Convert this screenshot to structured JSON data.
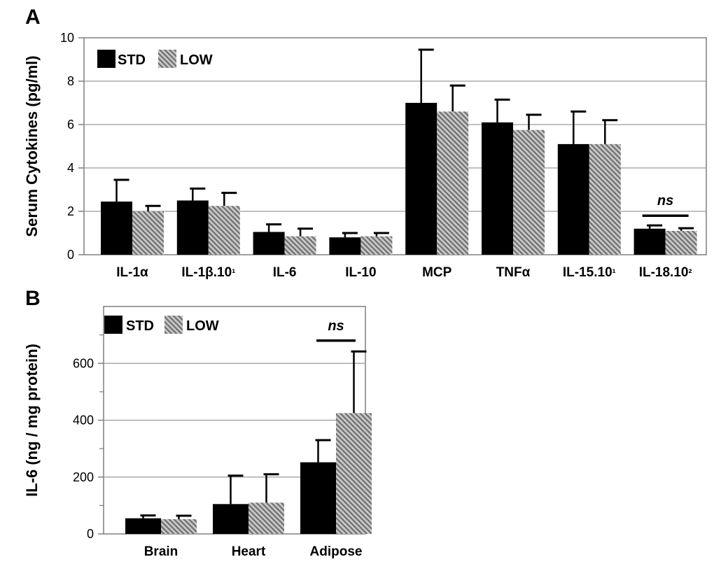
{
  "colors": {
    "std": "#000000",
    "low_stripe_dark": "#6e6e6e",
    "low_stripe_light": "#c8c8c8",
    "grid": "#9a9a9a",
    "axis": "#7f7f7f"
  },
  "chart_data": [
    {
      "panel": "A",
      "type": "bar",
      "title": "",
      "xlabel": "",
      "ylabel": "Serum Cytokines (pg/ml)",
      "ylim": [
        0,
        10
      ],
      "yticks": [
        0,
        2,
        4,
        6,
        8,
        10
      ],
      "ytick_labels": [
        "0",
        "2",
        "4",
        "6",
        "8",
        "10"
      ],
      "grid": true,
      "legend_position": "top-left",
      "categories": [
        "IL-1α",
        "IL-1β.10¹",
        "IL-6",
        "IL-10",
        "MCP",
        "TNFα",
        "IL-15.10¹",
        "IL-18.10²"
      ],
      "series": [
        {
          "name": "STD",
          "values": [
            2.45,
            2.5,
            1.05,
            0.8,
            7.0,
            6.1,
            5.1,
            1.2
          ],
          "error": [
            1.0,
            0.55,
            0.35,
            0.2,
            2.45,
            1.05,
            1.5,
            0.15
          ]
        },
        {
          "name": "LOW",
          "values": [
            2.0,
            2.25,
            0.85,
            0.85,
            6.6,
            5.75,
            5.1,
            1.1
          ],
          "error": [
            0.25,
            0.6,
            0.35,
            0.15,
            1.2,
            0.7,
            1.1,
            0.12
          ]
        }
      ],
      "annotations": [
        {
          "text": "ns",
          "category_index": 7,
          "y": 1.8
        }
      ]
    },
    {
      "panel": "B",
      "type": "bar",
      "title": "",
      "xlabel": "",
      "ylabel": "IL-6 (ng / mg protein)",
      "ylim": [
        0,
        800
      ],
      "yticks": [
        0,
        200,
        400,
        600
      ],
      "ytick_labels": [
        "0",
        "200",
        "400",
        "600"
      ],
      "minor_yticks": [
        100,
        300,
        500,
        700
      ],
      "grid": true,
      "legend_position": "top-left",
      "categories": [
        "Brain",
        "Heart",
        "Adipose"
      ],
      "series": [
        {
          "name": "STD",
          "values": [
            55,
            105,
            252
          ],
          "error": [
            10,
            100,
            78
          ]
        },
        {
          "name": "LOW",
          "values": [
            52,
            110,
            425
          ],
          "error": [
            12,
            100,
            217
          ]
        }
      ],
      "annotations": [
        {
          "text": "ns",
          "category_index": 2,
          "y": 680
        }
      ]
    }
  ]
}
